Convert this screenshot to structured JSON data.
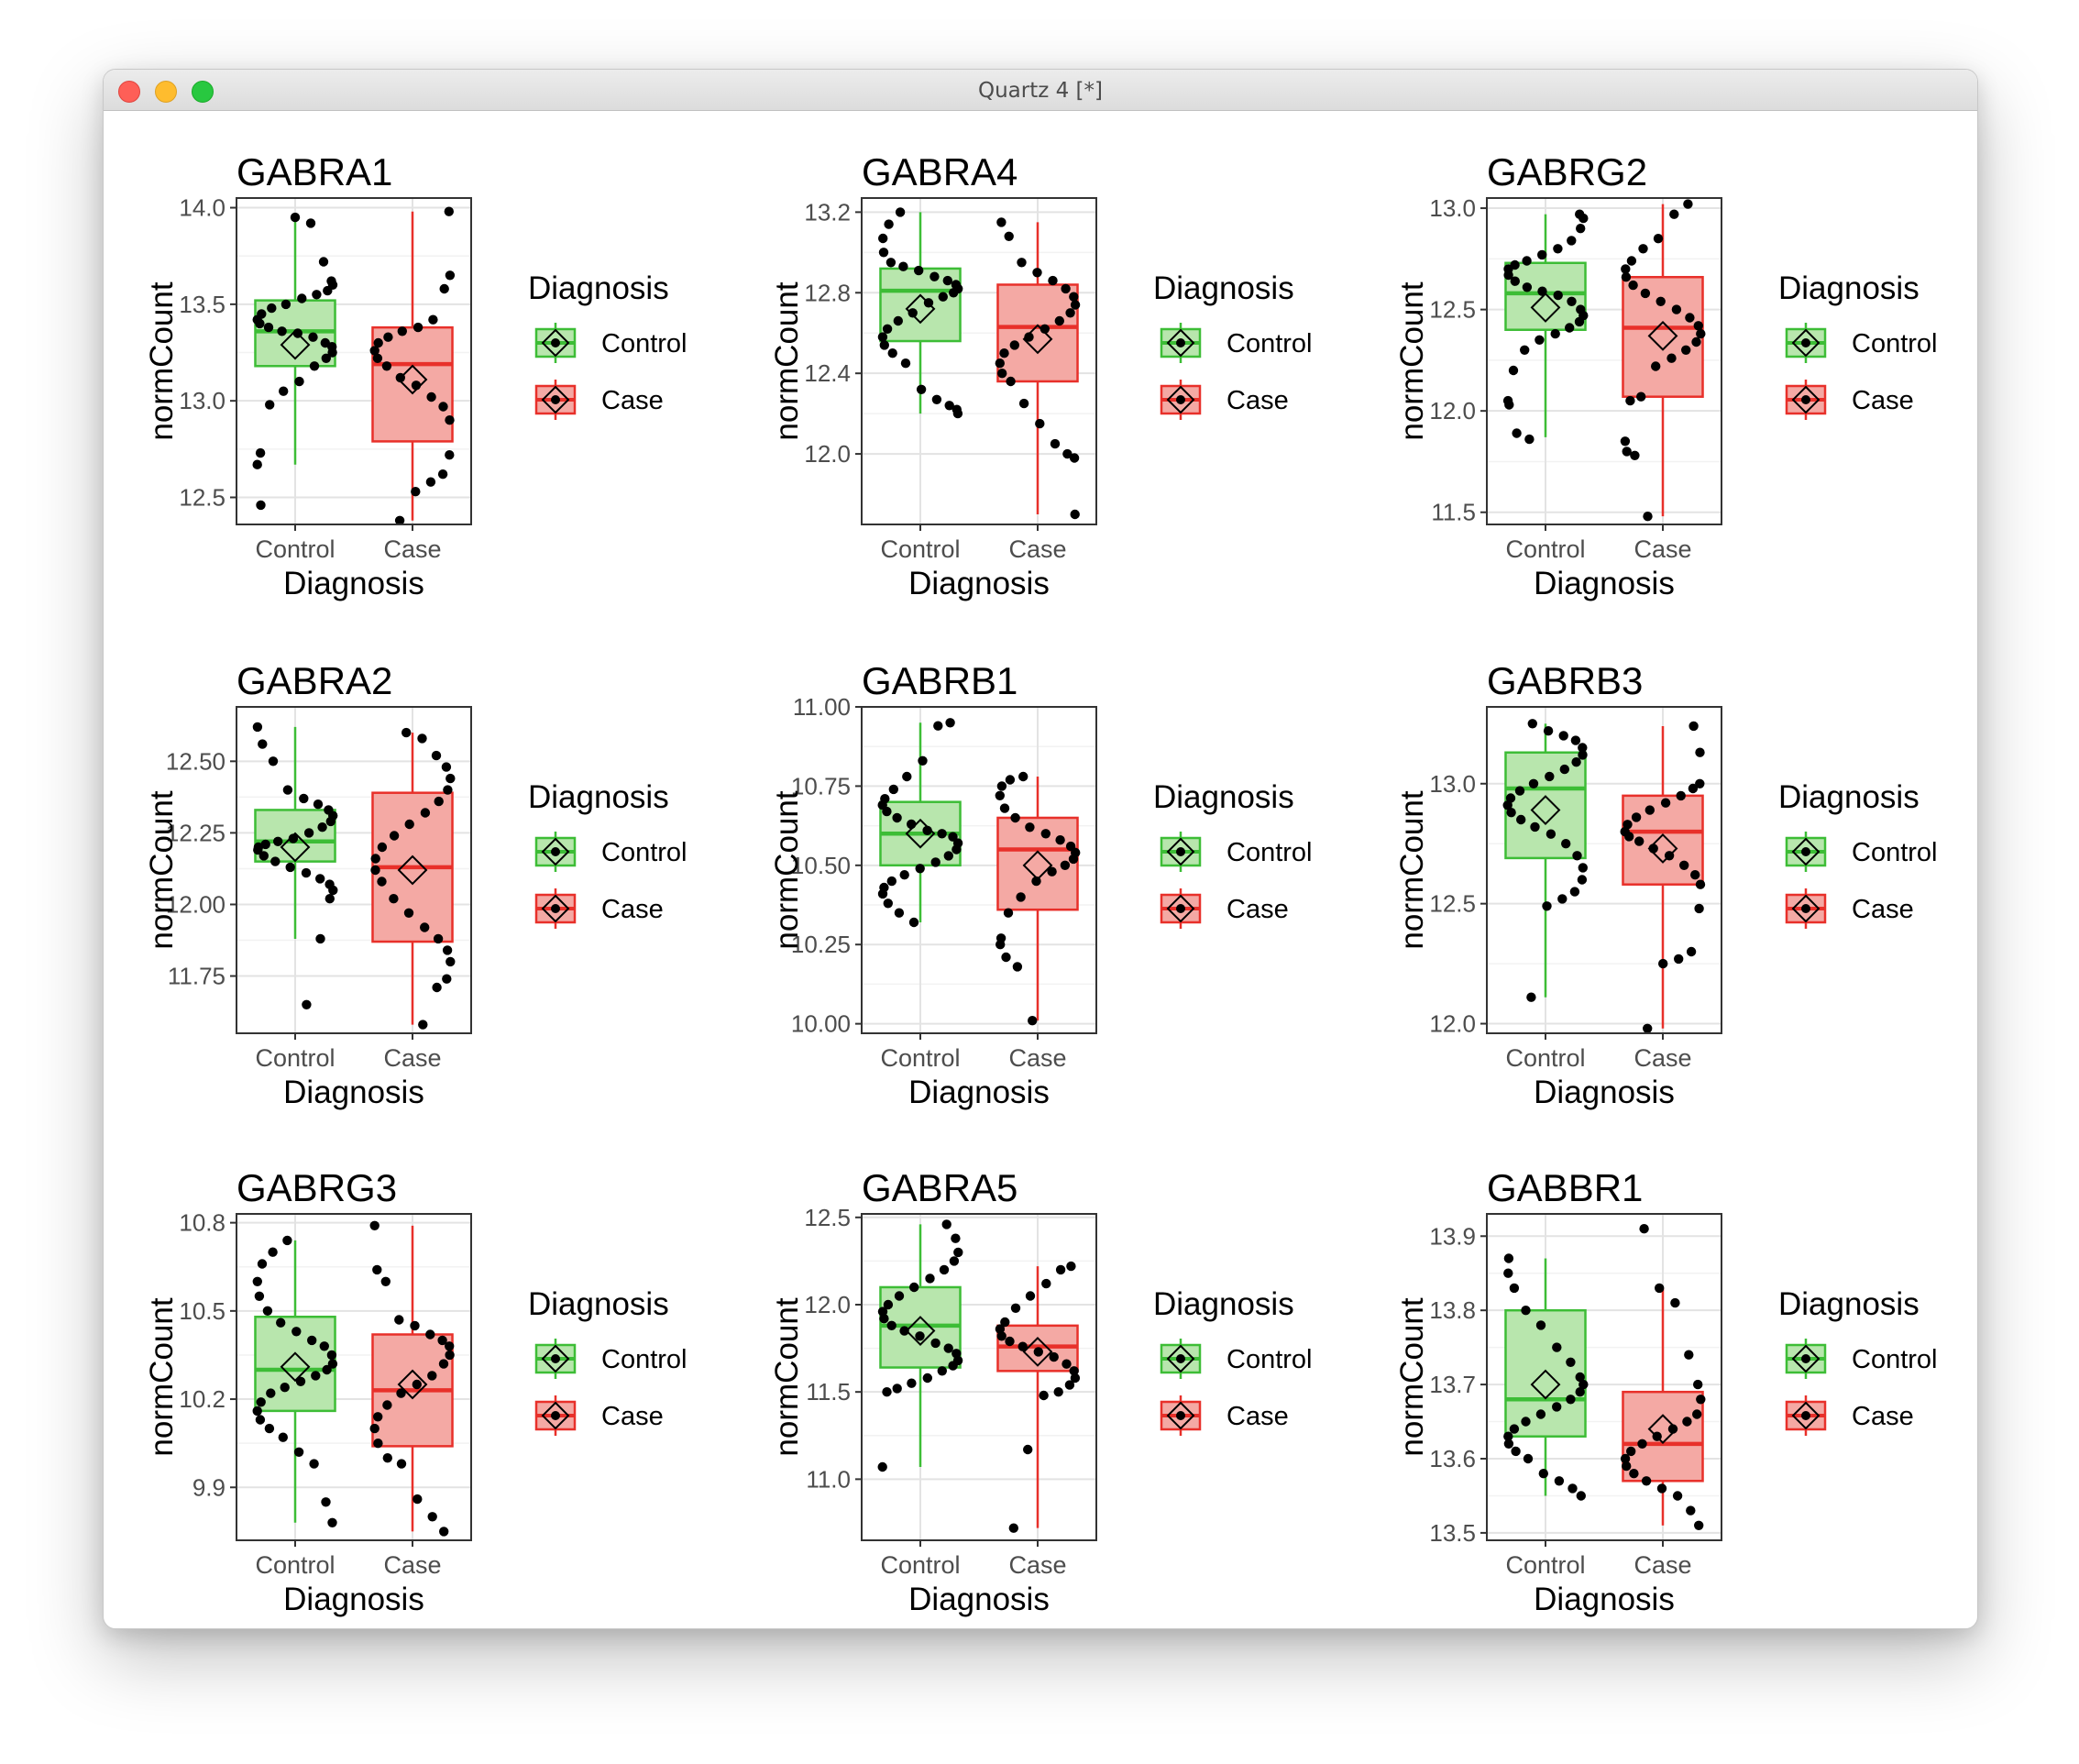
{
  "window": {
    "title": "Quartz 4 [*]"
  },
  "colors": {
    "control_line": "#3dbd36",
    "control_fill": "#b8e6ad",
    "case_line": "#e8302a",
    "case_fill": "#f4a9a4"
  },
  "legend": {
    "title": "Diagnosis",
    "items": [
      "Control",
      "Case"
    ]
  },
  "chart_data": [
    {
      "type": "box",
      "title": "GABRA1",
      "xlabel": "Diagnosis",
      "ylabel": "normCount",
      "categories": [
        "Control",
        "Case"
      ],
      "ylim": [
        12.36,
        14.05
      ],
      "yticks": [
        12.5,
        13.0,
        13.5,
        14.0
      ],
      "ytick_labels": [
        "12.5",
        "13.0",
        "13.5",
        "14.0"
      ],
      "boxes": [
        {
          "name": "Control",
          "whisker_low": 12.67,
          "q1": 13.18,
          "median": 13.36,
          "q3": 13.52,
          "whisker_high": 13.95,
          "mean": 13.29
        },
        {
          "name": "Case",
          "whisker_low": 12.38,
          "q1": 12.79,
          "median": 13.19,
          "q3": 13.38,
          "whisker_high": 13.98,
          "mean": 13.11
        }
      ],
      "points": [
        [
          13.95,
          13.92,
          13.72,
          13.62,
          13.6,
          13.57,
          13.55,
          13.53,
          13.5,
          13.48,
          13.45,
          13.42,
          13.4,
          13.38,
          13.36,
          13.35,
          13.33,
          13.3,
          13.28,
          13.25,
          13.22,
          13.18,
          13.1,
          13.05,
          12.98,
          12.73,
          12.67,
          12.46
        ],
        [
          13.98,
          13.65,
          13.58,
          13.42,
          13.38,
          13.36,
          13.33,
          13.3,
          13.26,
          13.22,
          13.18,
          13.12,
          13.08,
          13.02,
          12.97,
          12.9,
          12.72,
          12.62,
          12.58,
          12.53,
          12.38
        ]
      ]
    },
    {
      "type": "box",
      "title": "GABRA4",
      "xlabel": "Diagnosis",
      "ylabel": "normCount",
      "categories": [
        "Control",
        "Case"
      ],
      "ylim": [
        11.65,
        13.27
      ],
      "yticks": [
        12.0,
        12.4,
        12.8,
        13.2
      ],
      "ytick_labels": [
        "12.0",
        "12.4",
        "12.8",
        "13.2"
      ],
      "boxes": [
        {
          "name": "Control",
          "whisker_low": 12.2,
          "q1": 12.56,
          "median": 12.81,
          "q3": 12.92,
          "whisker_high": 13.2,
          "mean": 12.72
        },
        {
          "name": "Case",
          "whisker_low": 11.7,
          "q1": 12.36,
          "median": 12.63,
          "q3": 12.84,
          "whisker_high": 13.15,
          "mean": 12.57
        }
      ],
      "points": [
        [
          13.2,
          13.14,
          13.07,
          13.0,
          12.95,
          12.93,
          12.91,
          12.88,
          12.86,
          12.84,
          12.82,
          12.8,
          12.78,
          12.75,
          12.7,
          12.66,
          12.62,
          12.58,
          12.54,
          12.5,
          12.45,
          12.32,
          12.27,
          12.24,
          12.22,
          12.2
        ],
        [
          13.15,
          13.08,
          12.95,
          12.9,
          12.86,
          12.82,
          12.78,
          12.74,
          12.7,
          12.66,
          12.62,
          12.58,
          12.54,
          12.5,
          12.45,
          12.4,
          12.36,
          12.25,
          12.15,
          12.05,
          12.0,
          11.98,
          11.7
        ]
      ]
    },
    {
      "type": "box",
      "title": "GABRG2",
      "xlabel": "Diagnosis",
      "ylabel": "normCount",
      "categories": [
        "Control",
        "Case"
      ],
      "ylim": [
        11.44,
        13.05
      ],
      "yticks": [
        11.5,
        12.0,
        12.5,
        13.0
      ],
      "ytick_labels": [
        "11.5",
        "12.0",
        "12.5",
        "13.0"
      ],
      "boxes": [
        {
          "name": "Control",
          "whisker_low": 11.87,
          "q1": 12.4,
          "median": 12.58,
          "q3": 12.73,
          "whisker_high": 12.97,
          "mean": 12.51
        },
        {
          "name": "Case",
          "whisker_low": 11.48,
          "q1": 12.07,
          "median": 12.41,
          "q3": 12.66,
          "whisker_high": 13.02,
          "mean": 12.37
        }
      ],
      "points": [
        [
          12.97,
          12.95,
          12.9,
          12.84,
          12.8,
          12.77,
          12.74,
          12.72,
          12.7,
          12.67,
          12.64,
          12.61,
          12.59,
          12.57,
          12.54,
          12.5,
          12.47,
          12.44,
          12.41,
          12.38,
          12.35,
          12.3,
          12.2,
          12.05,
          12.03,
          11.89,
          11.86
        ],
        [
          13.02,
          12.97,
          12.85,
          12.8,
          12.74,
          12.7,
          12.66,
          12.62,
          12.58,
          12.54,
          12.5,
          12.46,
          12.42,
          12.38,
          12.34,
          12.3,
          12.26,
          12.22,
          12.07,
          12.05,
          11.85,
          11.8,
          11.78,
          11.48
        ]
      ]
    },
    {
      "type": "box",
      "title": "GABRA2",
      "xlabel": "Diagnosis",
      "ylabel": "normCount",
      "categories": [
        "Control",
        "Case"
      ],
      "ylim": [
        11.55,
        12.69
      ],
      "yticks": [
        11.75,
        12.0,
        12.25,
        12.5
      ],
      "ytick_labels": [
        "11.75",
        "12.00",
        "12.25",
        "12.50"
      ],
      "boxes": [
        {
          "name": "Control",
          "whisker_low": 11.88,
          "q1": 12.15,
          "median": 12.22,
          "q3": 12.33,
          "whisker_high": 12.62,
          "mean": 12.2
        },
        {
          "name": "Case",
          "whisker_low": 11.58,
          "q1": 11.87,
          "median": 12.13,
          "q3": 12.39,
          "whisker_high": 12.6,
          "mean": 12.12
        }
      ],
      "points": [
        [
          12.62,
          12.56,
          12.5,
          12.4,
          12.37,
          12.35,
          12.33,
          12.31,
          12.29,
          12.27,
          12.25,
          12.23,
          12.22,
          12.21,
          12.2,
          12.19,
          12.17,
          12.15,
          12.13,
          12.11,
          12.09,
          12.07,
          12.05,
          12.02,
          11.88,
          11.65
        ],
        [
          12.6,
          12.58,
          12.52,
          12.48,
          12.44,
          12.4,
          12.36,
          12.32,
          12.28,
          12.24,
          12.2,
          12.16,
          12.12,
          12.08,
          12.02,
          11.97,
          11.92,
          11.88,
          11.84,
          11.8,
          11.74,
          11.71,
          11.58
        ]
      ]
    },
    {
      "type": "box",
      "title": "GABRB1",
      "xlabel": "Diagnosis",
      "ylabel": "normCount",
      "categories": [
        "Control",
        "Case"
      ],
      "ylim": [
        9.97,
        11.0
      ],
      "yticks": [
        10.0,
        10.25,
        10.5,
        10.75,
        11.0
      ],
      "ytick_labels": [
        "10.00",
        "10.25",
        "10.50",
        "10.75",
        "11.00"
      ],
      "boxes": [
        {
          "name": "Control",
          "whisker_low": 10.32,
          "q1": 10.5,
          "median": 10.6,
          "q3": 10.7,
          "whisker_high": 10.95,
          "mean": 10.6
        },
        {
          "name": "Case",
          "whisker_low": 10.01,
          "q1": 10.36,
          "median": 10.55,
          "q3": 10.65,
          "whisker_high": 10.78,
          "mean": 10.5
        }
      ],
      "points": [
        [
          10.95,
          10.94,
          10.83,
          10.78,
          10.74,
          10.71,
          10.69,
          10.67,
          10.65,
          10.63,
          10.61,
          10.6,
          10.59,
          10.57,
          10.55,
          10.53,
          10.51,
          10.49,
          10.47,
          10.45,
          10.43,
          10.41,
          10.38,
          10.35,
          10.32
        ],
        [
          10.78,
          10.77,
          10.75,
          10.72,
          10.68,
          10.65,
          10.62,
          10.6,
          10.58,
          10.56,
          10.54,
          10.52,
          10.5,
          10.48,
          10.45,
          10.4,
          10.35,
          10.27,
          10.25,
          10.21,
          10.18,
          10.01
        ]
      ]
    },
    {
      "type": "box",
      "title": "GABRB3",
      "xlabel": "Diagnosis",
      "ylabel": "normCount",
      "categories": [
        "Control",
        "Case"
      ],
      "ylim": [
        11.96,
        13.32
      ],
      "yticks": [
        12.0,
        12.5,
        13.0
      ],
      "ytick_labels": [
        "12.0",
        "12.5",
        "13.0"
      ],
      "boxes": [
        {
          "name": "Control",
          "whisker_low": 12.11,
          "q1": 12.69,
          "median": 12.98,
          "q3": 13.13,
          "whisker_high": 13.25,
          "mean": 12.89
        },
        {
          "name": "Case",
          "whisker_low": 11.98,
          "q1": 12.58,
          "median": 12.8,
          "q3": 12.95,
          "whisker_high": 13.24,
          "mean": 12.73
        }
      ],
      "points": [
        [
          13.25,
          13.22,
          13.2,
          13.18,
          13.15,
          13.12,
          13.09,
          13.06,
          13.03,
          13.0,
          12.97,
          12.94,
          12.91,
          12.88,
          12.85,
          12.82,
          12.79,
          12.75,
          12.7,
          12.65,
          12.6,
          12.55,
          12.52,
          12.49,
          12.11
        ],
        [
          13.24,
          13.13,
          13.0,
          12.98,
          12.95,
          12.92,
          12.89,
          12.86,
          12.83,
          12.8,
          12.78,
          12.76,
          12.73,
          12.7,
          12.66,
          12.62,
          12.58,
          12.48,
          12.3,
          12.27,
          12.25,
          11.98
        ]
      ]
    },
    {
      "type": "box",
      "title": "GABRG3",
      "xlabel": "Diagnosis",
      "ylabel": "normCount",
      "categories": [
        "Control",
        "Case"
      ],
      "ylim": [
        9.72,
        10.83
      ],
      "yticks": [
        9.9,
        10.2,
        10.5,
        10.8
      ],
      "ytick_labels": [
        "9.9",
        "10.2",
        "10.5",
        "10.8"
      ],
      "boxes": [
        {
          "name": "Control",
          "whisker_low": 9.78,
          "q1": 10.16,
          "median": 10.3,
          "q3": 10.48,
          "whisker_high": 10.74,
          "mean": 10.31
        },
        {
          "name": "Case",
          "whisker_low": 9.75,
          "q1": 10.04,
          "median": 10.23,
          "q3": 10.42,
          "whisker_high": 10.79,
          "mean": 10.25
        }
      ],
      "points": [
        [
          10.74,
          10.7,
          10.66,
          10.6,
          10.55,
          10.5,
          10.46,
          10.43,
          10.4,
          10.38,
          10.35,
          10.32,
          10.3,
          10.28,
          10.26,
          10.24,
          10.22,
          10.19,
          10.16,
          10.13,
          10.1,
          10.07,
          10.02,
          9.98,
          9.85,
          9.78
        ],
        [
          10.79,
          10.64,
          10.6,
          10.47,
          10.45,
          10.42,
          10.4,
          10.38,
          10.35,
          10.32,
          10.28,
          10.25,
          10.22,
          10.18,
          10.14,
          10.1,
          10.05,
          10.0,
          9.98,
          9.86,
          9.8,
          9.75
        ]
      ]
    },
    {
      "type": "box",
      "title": "GABRA5",
      "xlabel": "Diagnosis",
      "ylabel": "normCount",
      "categories": [
        "Control",
        "Case"
      ],
      "ylim": [
        10.65,
        12.52
      ],
      "yticks": [
        11.0,
        11.5,
        12.0,
        12.5
      ],
      "ytick_labels": [
        "11.0",
        "11.5",
        "12.0",
        "12.5"
      ],
      "boxes": [
        {
          "name": "Control",
          "whisker_low": 11.07,
          "q1": 11.64,
          "median": 11.88,
          "q3": 12.1,
          "whisker_high": 12.46,
          "mean": 11.85
        },
        {
          "name": "Case",
          "whisker_low": 10.72,
          "q1": 11.62,
          "median": 11.76,
          "q3": 11.88,
          "whisker_high": 12.22,
          "mean": 11.73
        }
      ],
      "points": [
        [
          12.46,
          12.38,
          12.3,
          12.25,
          12.2,
          12.15,
          12.1,
          12.05,
          12.0,
          11.96,
          11.92,
          11.88,
          11.85,
          11.82,
          11.78,
          11.75,
          11.72,
          11.68,
          11.65,
          11.62,
          11.58,
          11.55,
          11.52,
          11.5,
          11.07
        ],
        [
          12.22,
          12.2,
          12.12,
          12.05,
          11.98,
          11.9,
          11.86,
          11.82,
          11.79,
          11.76,
          11.73,
          11.7,
          11.66,
          11.62,
          11.58,
          11.54,
          11.5,
          11.48,
          11.17,
          10.72
        ]
      ]
    },
    {
      "type": "box",
      "title": "GABBR1",
      "xlabel": "Diagnosis",
      "ylabel": "normCount",
      "categories": [
        "Control",
        "Case"
      ],
      "ylim": [
        13.49,
        13.93
      ],
      "yticks": [
        13.5,
        13.6,
        13.7,
        13.8,
        13.9
      ],
      "ytick_labels": [
        "13.5",
        "13.6",
        "13.7",
        "13.8",
        "13.9"
      ],
      "boxes": [
        {
          "name": "Control",
          "whisker_low": 13.55,
          "q1": 13.63,
          "median": 13.68,
          "q3": 13.8,
          "whisker_high": 13.87,
          "mean": 13.7
        },
        {
          "name": "Case",
          "whisker_low": 13.51,
          "q1": 13.57,
          "median": 13.62,
          "q3": 13.69,
          "whisker_high": 13.83,
          "mean": 13.64
        }
      ],
      "points": [
        [
          13.87,
          13.85,
          13.83,
          13.8,
          13.78,
          13.75,
          13.73,
          13.71,
          13.7,
          13.69,
          13.68,
          13.67,
          13.66,
          13.65,
          13.64,
          13.63,
          13.62,
          13.61,
          13.6,
          13.58,
          13.57,
          13.56,
          13.55
        ],
        [
          13.91,
          13.83,
          13.81,
          13.74,
          13.7,
          13.68,
          13.66,
          13.65,
          13.64,
          13.63,
          13.62,
          13.61,
          13.6,
          13.59,
          13.58,
          13.57,
          13.56,
          13.55,
          13.53,
          13.51
        ]
      ]
    }
  ]
}
